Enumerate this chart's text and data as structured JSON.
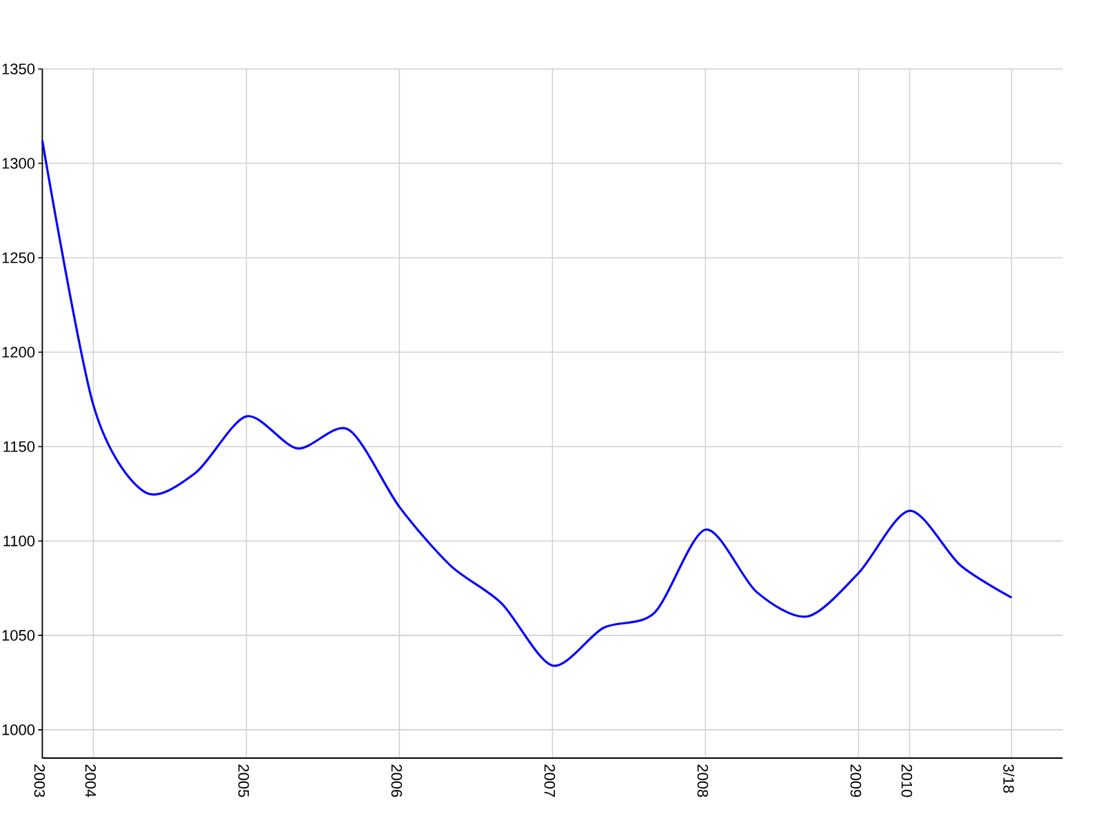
{
  "chart_data": {
    "type": "line",
    "categories": [
      "2003",
      "2004",
      null,
      null,
      "2005",
      null,
      null,
      "2006",
      null,
      null,
      "2007",
      null,
      null,
      "2008",
      null,
      null,
      "2009",
      "2010",
      null,
      "3/18"
    ],
    "values": [
      1312,
      1172,
      1126,
      1136,
      1166,
      1149,
      1159,
      1118,
      1087,
      1067,
      1034,
      1054,
      1062,
      1106,
      1073,
      1060,
      1083,
      1116,
      1087,
      1070
    ],
    "color": "#0000ff",
    "line_style": "solid",
    "ylim": [
      985,
      1350
    ],
    "yticks": [
      1000,
      1050,
      1100,
      1150,
      1200,
      1250,
      1300,
      1350
    ],
    "grid": true
  }
}
